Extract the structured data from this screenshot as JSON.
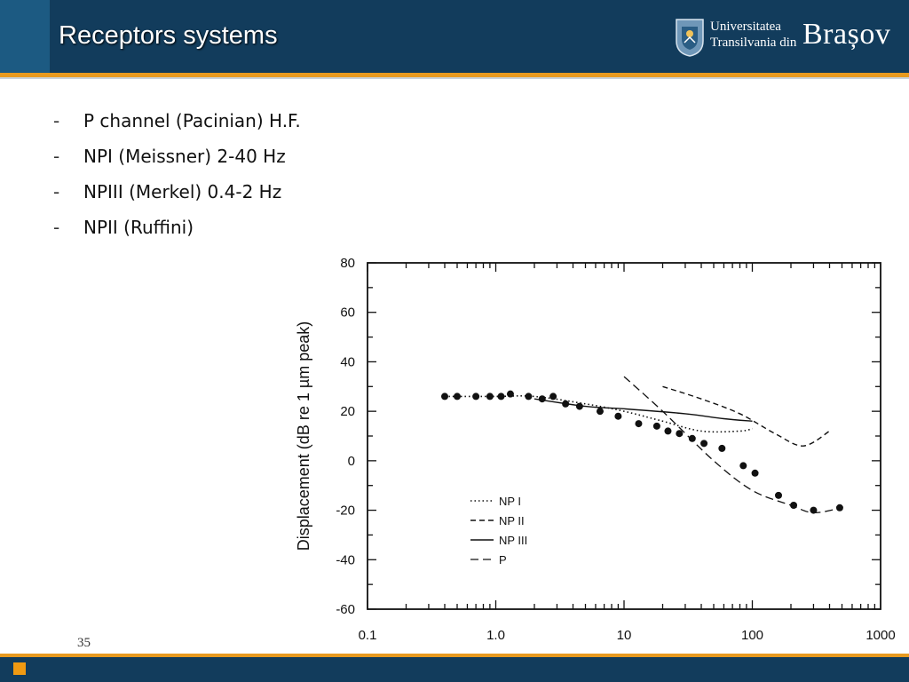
{
  "slide": {
    "title": "Receptors systems",
    "slide_number": "35"
  },
  "logo": {
    "line1": "Universitatea",
    "line2": "Transilvania din",
    "big": "Brașov",
    "emblem_icon": "university-crest-icon"
  },
  "bullets": [
    {
      "dash": "-",
      "text": "P channel (Pacinian) H.F."
    },
    {
      "dash": "-",
      "text": "NPI (Meissner) 2-40 Hz"
    },
    {
      "dash": "-",
      "text": "NPIII (Merkel) 0.4-2 Hz"
    },
    {
      "dash": "-",
      "text": "NPII (Ruffini)"
    }
  ],
  "colors": {
    "header": "#123c5c",
    "accent": "#e89a1f",
    "footer_square": "#f09a12"
  },
  "chart_data": {
    "type": "line",
    "xscale": "log",
    "xlim": [
      0.1,
      1000
    ],
    "ylim": [
      -60,
      80
    ],
    "ylabel": "Displacement (dB re 1 µm peak)",
    "xlabel": "",
    "x_tick_labels": [
      "0.1",
      "1.0",
      "10",
      "100",
      "1000"
    ],
    "x_ticks": [
      0.1,
      1,
      10,
      100,
      1000
    ],
    "y_tick_labels": [
      "80",
      "60",
      "40",
      "20",
      "0",
      "-20",
      "-40",
      "-60"
    ],
    "y_ticks": [
      80,
      60,
      40,
      20,
      0,
      -20,
      -40,
      -60
    ],
    "grid": false,
    "legend_position": "bottom-center",
    "series": [
      {
        "name": "NP I",
        "style": "dotted",
        "x": [
          0.4,
          1,
          2,
          5,
          10,
          20,
          40,
          80,
          100
        ],
        "y": [
          26,
          26,
          26,
          23,
          20,
          16,
          12,
          12,
          13
        ]
      },
      {
        "name": "NP II",
        "style": "dashed",
        "x": [
          20,
          40,
          80,
          150,
          250,
          400
        ],
        "y": [
          30,
          25,
          19,
          11,
          6,
          12
        ]
      },
      {
        "name": "NP III",
        "style": "solid",
        "x": [
          2,
          5,
          10,
          30,
          60,
          100
        ],
        "y": [
          25,
          22,
          21,
          19,
          17,
          16
        ]
      },
      {
        "name": "P",
        "style": "long-dashed",
        "x": [
          10,
          20,
          50,
          100,
          200,
          300,
          500
        ],
        "y": [
          34,
          20,
          0,
          -12,
          -18,
          -21,
          -19
        ]
      }
    ],
    "points": {
      "x": [
        0.4,
        0.5,
        0.7,
        0.9,
        1.1,
        1.3,
        1.8,
        2.3,
        2.8,
        3.5,
        4.5,
        6.5,
        9,
        13,
        18,
        22,
        27,
        34,
        42,
        58,
        85,
        105,
        160,
        210,
        300,
        480
      ],
      "y": [
        26,
        26,
        26,
        26,
        26,
        27,
        26,
        25,
        26,
        23,
        22,
        20,
        18,
        15,
        14,
        12,
        11,
        9,
        7,
        5,
        -2,
        -5,
        -14,
        -18,
        -20,
        -19
      ]
    }
  }
}
